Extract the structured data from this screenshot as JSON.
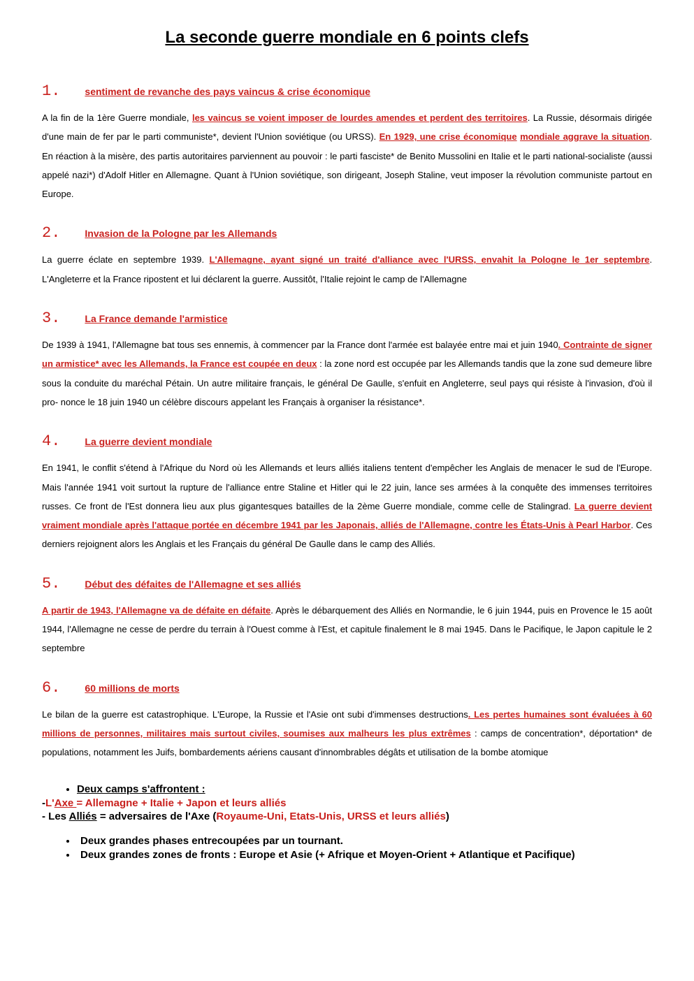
{
  "page": {
    "title": "La seconde guerre mondiale en 6 points clefs"
  },
  "sections": [
    {
      "number": "1.",
      "title": "sentiment de revanche des pays vaincus & crise économique",
      "body_parts": [
        {
          "type": "plain",
          "text": "A la fin de la 1ère Guerre mondiale, "
        },
        {
          "type": "red",
          "text": "les vaincus se voient imposer de lourdes amendes et perdent des territoires"
        },
        {
          "type": "plain",
          "text": ". La Russie, désormais dirigée d'une main de fer par le parti communiste*, devient l'Union soviétique (ou URSS). "
        },
        {
          "type": "red",
          "text": "En 1929, une crise économique"
        },
        {
          "type": "red-nounderline",
          "text": " "
        },
        {
          "type": "red",
          "text": "mondiale aggrave la situation"
        },
        {
          "type": "plain",
          "text": ". En réaction à la misère, des partis autoritaires parviennent au pouvoir : le parti fasciste* de Benito Mussolini en Italie et le parti national-socialiste (aussi appelé nazi*) d'Adolf Hitler en Allemagne. Quant à l'Union soviétique, son dirigeant, Joseph Staline, veut imposer la révolution communiste partout en Europe."
        }
      ]
    },
    {
      "number": "2.",
      "title": "Invasion de la Pologne par les Allemands",
      "body_parts": [
        {
          "type": "plain",
          "text": "La guerre éclate en septembre 1939. "
        },
        {
          "type": "red",
          "text": "L'Allemagne, ayant signé un traité d'alliance avec l'URSS, envahit la Pologne le 1er septembre"
        },
        {
          "type": "plain",
          "text": ". L'Angleterre et la France ripostent et lui déclarent la guerre. Aussitôt, l'Italie rejoint le camp de l'Allemagne"
        }
      ]
    },
    {
      "number": "3.",
      "title": "La France demande l'armistice",
      "body_parts": [
        {
          "type": "plain",
          "text": "De 1939 à 1941, l'Allemagne bat tous ses ennemis, à commencer par la France dont l'armée est balayée entre mai et juin 1940"
        },
        {
          "type": "red",
          "text": ". Contrainte de signer un armistice* avec les Allemands, la France est coupée en deux"
        },
        {
          "type": "plain",
          "text": " : la zone nord est occupée par les Allemands tandis que la zone sud demeure libre sous la conduite du maréchal Pétain. Un autre militaire français, le général De Gaulle, s'enfuit en Angleterre, seul pays qui résiste à l'invasion, d'où il pro- nonce le 18 juin 1940 un célèbre discours appelant les Français à organiser la résistance*."
        }
      ]
    },
    {
      "number": "4.",
      "title": "La guerre devient mondiale",
      "body_parts": [
        {
          "type": "plain",
          "text": "En 1941, le conflit s'étend à l'Afrique du Nord où les Allemands et leurs alliés italiens tentent d'empêcher les Anglais de menacer le sud de l'Europe. Mais l'année 1941 voit surtout la rupture de l'alliance entre Staline et Hitler qui le 22 juin, lance ses armées à la conquête des immenses territoires russes. Ce front de l'Est donnera lieu aux plus gigantesques batailles de la 2ème Guerre mondiale, comme celle de Stalingrad. "
        },
        {
          "type": "red",
          "text": "La guerre devient vraiment mondiale après l'attaque portée en décembre 1941 par les Japonais, alliés de l'Allemagne, contre les États-Unis à Pearl Harbor"
        },
        {
          "type": "plain",
          "text": ". Ces derniers rejoignent alors les Anglais et les Français du général De Gaulle dans le camp des Alliés."
        }
      ]
    },
    {
      "number": "5.",
      "title": "Début des défaites de l'Allemagne et ses alliés",
      "body_parts": [
        {
          "type": "red",
          "text": "A partir de 1943, l'Allemagne va de défaite en défaite"
        },
        {
          "type": "plain",
          "text": ". Après le débarquement des Alliés en Normandie, le 6 juin 1944, puis en Provence le 15 août 1944, l'Allemagne ne cesse de perdre du terrain à l'Ouest comme à l'Est, et capitule finalement le 8 mai 1945. Dans le Pacifique, le Japon capitule le 2 septembre"
        }
      ]
    },
    {
      "number": "6.",
      "title": "60 millions de morts",
      "body_parts": [
        {
          "type": "plain",
          "text": "Le bilan de la guerre est catastrophique. L'Europe, la Russie et l'Asie ont subi d'immenses destructions"
        },
        {
          "type": "red",
          "text": ". Les pertes humaines sont évaluées à 60 millions de personnes, militaires mais surtout civiles, soumises aux malheurs les plus extrêmes"
        },
        {
          "type": "plain",
          "text": " : camps de concentration*, déportation* de populations, notamment les Juifs, bombardements aériens causant d'innombrables dégâts et utilisation de la bombe atomique"
        }
      ]
    }
  ],
  "summary": {
    "heading": "Deux camps s'affrontent :",
    "camps": {
      "axe_prefix": "-",
      "axe_label": "L'",
      "axe_name": "Axe ",
      "axe_eq": "= Allemagne + Italie + Japon et leurs alliés",
      "allies_prefix": "- Les ",
      "allies_name": "Alliés",
      "allies_eq": " = adversaires de l'Axe (",
      "allies_list": "Royaume-Uni, Etats-Unis, URSS et leurs alliés",
      "allies_close": ")"
    },
    "points": [
      "Deux grandes phases entrecoupées par un tournant.",
      "Deux grandes zones de fronts : Europe et Asie (+ Afrique et Moyen-Orient + Atlantique et Pacifique)"
    ]
  },
  "colors": {
    "red": "#c9211e",
    "black": "#000000",
    "background": "#ffffff"
  }
}
